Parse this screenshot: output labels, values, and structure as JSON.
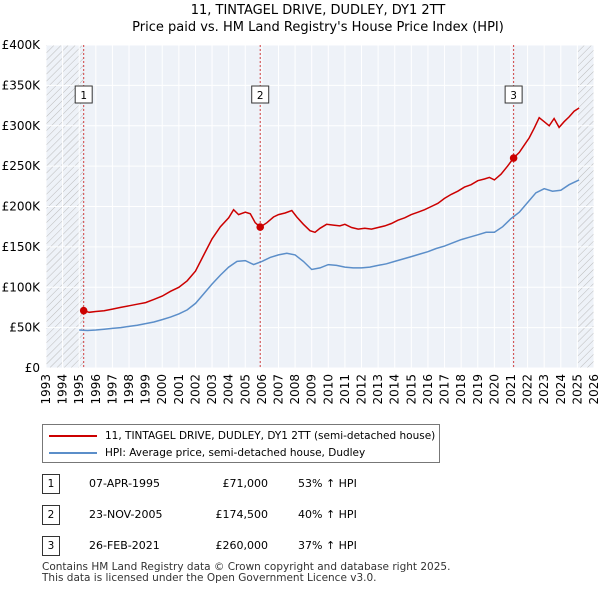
{
  "chart_data": {
    "type": "line",
    "title": "11, TINTAGEL DRIVE, DUDLEY, DY1 2TT",
    "subtitle": "Price paid vs. HM Land Registry's House Price Index (HPI)",
    "xlim": [
      1993,
      2026
    ],
    "ylim": [
      0,
      400000
    ],
    "y_ticks": [
      0,
      50000,
      100000,
      150000,
      200000,
      250000,
      300000,
      350000,
      400000
    ],
    "y_tick_labels": [
      "£0",
      "£50K",
      "£100K",
      "£150K",
      "£200K",
      "£250K",
      "£300K",
      "£350K",
      "£400K"
    ],
    "x_ticks": [
      1993,
      1994,
      1995,
      1996,
      1997,
      1998,
      1999,
      2000,
      2001,
      2002,
      2003,
      2004,
      2005,
      2006,
      2007,
      2008,
      2009,
      2010,
      2011,
      2012,
      2013,
      2014,
      2015,
      2016,
      2017,
      2018,
      2019,
      2020,
      2021,
      2022,
      2023,
      2024,
      2025,
      2026
    ],
    "hatched_ranges": [
      [
        1993,
        1995.27
      ],
      [
        2025.0,
        2026
      ]
    ],
    "grid": true,
    "series": [
      {
        "name": "11, TINTAGEL DRIVE, DUDLEY, DY1 2TT (semi-detached house)",
        "color": "#cc0000",
        "x": [
          1995.27,
          1995.6,
          1996,
          1996.5,
          1997,
          1997.5,
          1998,
          1998.5,
          1999,
          1999.5,
          2000,
          2000.5,
          2001,
          2001.5,
          2002,
          2002.5,
          2003,
          2003.5,
          2004,
          2004.3,
          2004.6,
          2005,
          2005.3,
          2005.6,
          2005.9,
          2006.3,
          2006.7,
          2007,
          2007.4,
          2007.8,
          2008.1,
          2008.5,
          2008.9,
          2009.2,
          2009.5,
          2009.9,
          2010.3,
          2010.7,
          2011,
          2011.4,
          2011.8,
          2012.2,
          2012.6,
          2013,
          2013.4,
          2013.8,
          2014.2,
          2014.6,
          2015,
          2015.4,
          2015.8,
          2016.2,
          2016.6,
          2017,
          2017.4,
          2017.8,
          2018.2,
          2018.6,
          2019,
          2019.4,
          2019.7,
          2020,
          2020.4,
          2020.8,
          2021.16,
          2021.5,
          2021.8,
          2022.1,
          2022.4,
          2022.7,
          2023,
          2023.3,
          2023.6,
          2023.9,
          2024.2,
          2024.5,
          2024.8,
          2025.1
        ],
        "values": [
          71000,
          69000,
          70000,
          71000,
          73000,
          75000,
          77000,
          79000,
          81000,
          85000,
          89000,
          95000,
          100000,
          108000,
          120000,
          140000,
          160000,
          175000,
          186000,
          196000,
          190000,
          193000,
          191000,
          180000,
          174500,
          180000,
          187000,
          190000,
          192000,
          195000,
          187000,
          178000,
          170000,
          168000,
          173000,
          178000,
          177000,
          176000,
          178000,
          174000,
          172000,
          173000,
          172000,
          174000,
          176000,
          179000,
          183000,
          186000,
          190000,
          193000,
          196000,
          200000,
          204000,
          210000,
          215000,
          219000,
          224000,
          227000,
          232000,
          234000,
          236000,
          233000,
          240000,
          250000,
          260000,
          267000,
          276000,
          285000,
          297000,
          310000,
          305000,
          300000,
          309000,
          298000,
          305000,
          311000,
          318000,
          322000
        ]
      },
      {
        "name": "HPI: Average price, semi-detached house, Dudley",
        "color": "#5b8ec9",
        "x": [
          1995.0,
          1995.5,
          1996,
          1996.5,
          1997,
          1997.5,
          1998,
          1998.5,
          1999,
          1999.5,
          2000,
          2000.5,
          2001,
          2001.5,
          2002,
          2002.5,
          2003,
          2003.5,
          2004,
          2004.5,
          2005,
          2005.5,
          2006,
          2006.5,
          2007,
          2007.5,
          2008,
          2008.5,
          2009,
          2009.5,
          2010,
          2010.5,
          2011,
          2011.5,
          2012,
          2012.5,
          2013,
          2013.5,
          2014,
          2014.5,
          2015,
          2015.5,
          2016,
          2016.5,
          2017,
          2017.5,
          2018,
          2018.5,
          2019,
          2019.5,
          2020,
          2020.5,
          2021,
          2021.5,
          2022,
          2022.5,
          2023,
          2023.5,
          2024,
          2024.5,
          2025.1
        ],
        "values": [
          47000,
          46500,
          47000,
          48000,
          49000,
          50000,
          51500,
          53000,
          55000,
          57000,
          60000,
          63000,
          67000,
          72000,
          80000,
          92000,
          104000,
          115000,
          125000,
          132000,
          133000,
          128000,
          132000,
          137000,
          140000,
          142000,
          140000,
          132000,
          122000,
          124000,
          128000,
          127000,
          125000,
          124000,
          124000,
          125000,
          127000,
          129000,
          132000,
          135000,
          138000,
          141000,
          144000,
          148000,
          151000,
          155000,
          159000,
          162000,
          165000,
          168000,
          168000,
          175000,
          185000,
          193000,
          205000,
          217000,
          222000,
          219000,
          220000,
          227000,
          233000
        ]
      }
    ],
    "annotations": [
      {
        "label": "1",
        "x": 1995.27,
        "value": 71000
      },
      {
        "label": "2",
        "x": 2005.9,
        "value": 174500
      },
      {
        "label": "3",
        "x": 2021.16,
        "value": 260000
      }
    ]
  },
  "legend": {
    "items": [
      {
        "label": "11, TINTAGEL DRIVE, DUDLEY, DY1 2TT (semi-detached house)",
        "color": "#cc0000"
      },
      {
        "label": "HPI: Average price, semi-detached house, Dudley",
        "color": "#5b8ec9"
      }
    ]
  },
  "sales": [
    {
      "num": "1",
      "date": "07-APR-1995",
      "price": "£71,000",
      "hpi": "53% ↑ HPI"
    },
    {
      "num": "2",
      "date": "23-NOV-2005",
      "price": "£174,500",
      "hpi": "40% ↑ HPI"
    },
    {
      "num": "3",
      "date": "26-FEB-2021",
      "price": "£260,000",
      "hpi": "37% ↑ HPI"
    }
  ],
  "footer": {
    "line1": "Contains HM Land Registry data © Crown copyright and database right 2025.",
    "line2": "This data is licensed under the Open Government Licence v3.0."
  }
}
